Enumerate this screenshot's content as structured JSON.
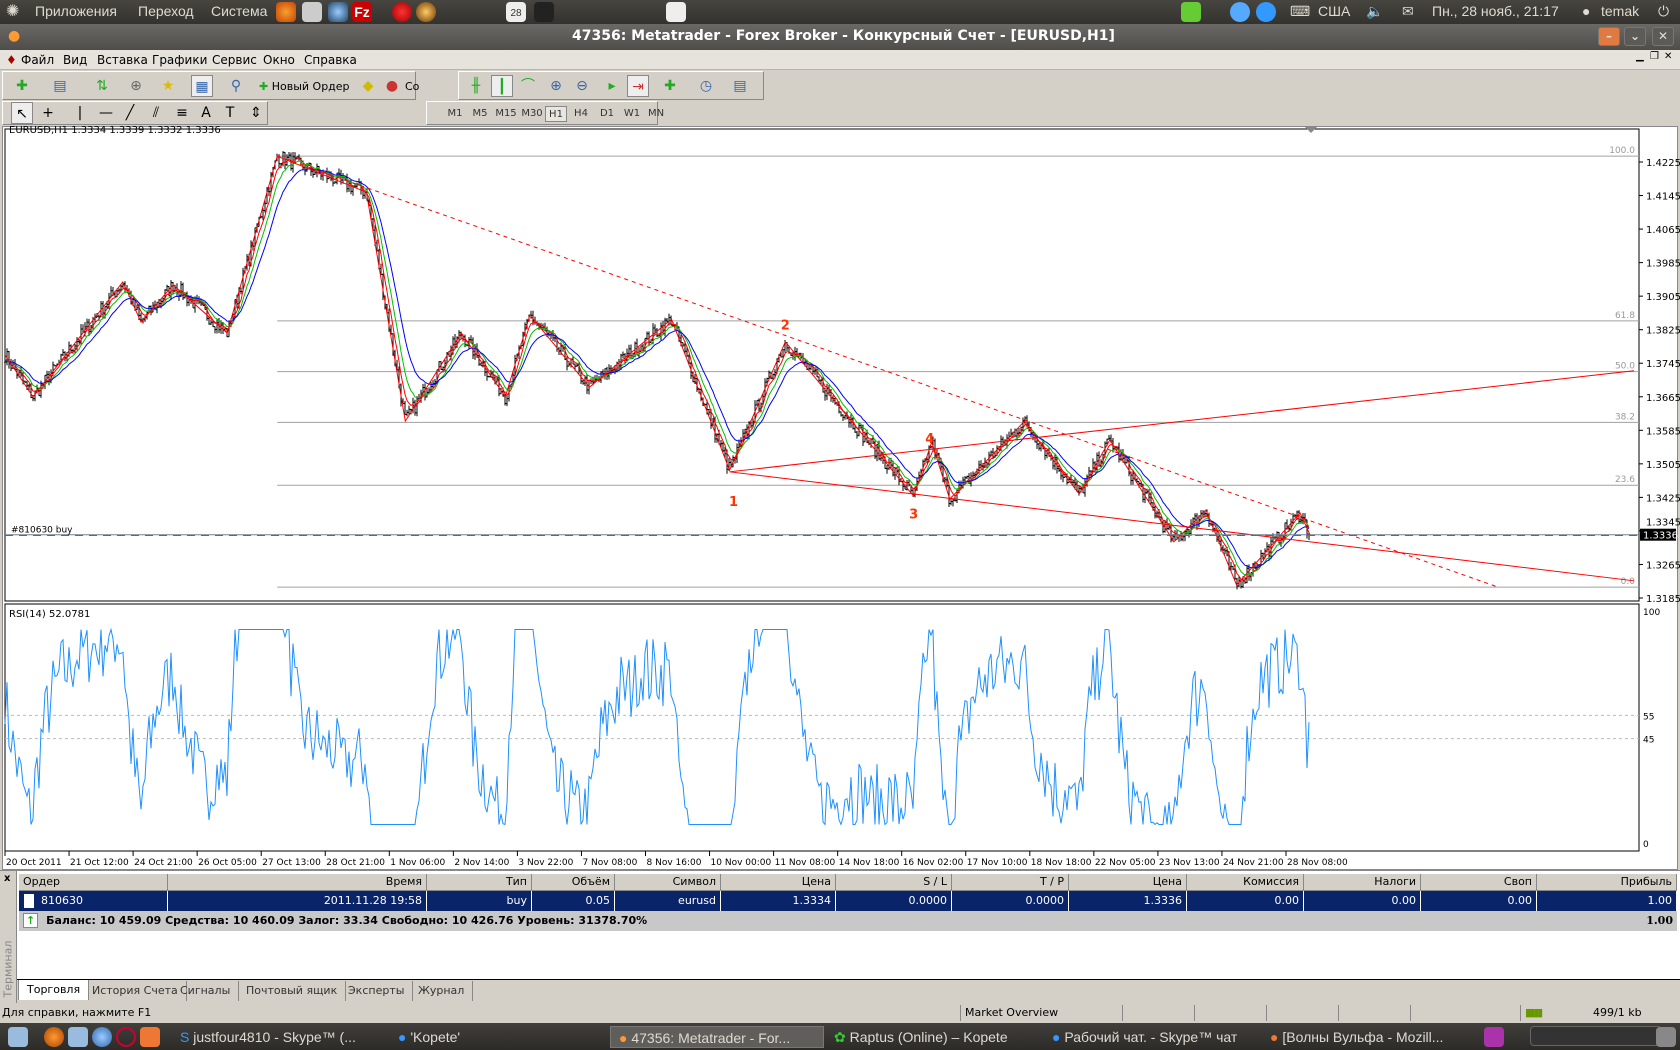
{
  "top_panel": {
    "menus": [
      "Приложения",
      "Переход",
      "Система"
    ],
    "calendar_day": "28",
    "keyboard": "США",
    "datetime": "Пн., 28 нояб., 21:17",
    "user": "temak"
  },
  "window": {
    "title": "47356: Metatrader - Forex Broker - Конкурсный Счет - [EURUSD,H1]"
  },
  "menu": [
    "Файл",
    "Вид",
    "Вставка",
    "Графики",
    "Сервис",
    "Окно",
    "Справка"
  ],
  "toolbar": {
    "new_order": "Новый Ордер",
    "truncated": "Co"
  },
  "timeframes": [
    "M1",
    "M5",
    "M15",
    "M30",
    "H1",
    "H4",
    "D1",
    "W1",
    "MN"
  ],
  "active_timeframe": "H1",
  "chart": {
    "info": "EURUSD,H1  1.3334 1.3339 1.3332 1.3336",
    "order_label": "#810630 buy",
    "bid": 1.3336,
    "bid_label": "1.3336",
    "order_price": 1.3334,
    "rsi_label": "RSI(14) 52.0781",
    "colors": {
      "ma_fast": "#ff0000",
      "ma_mid": "#00c000",
      "ma_slow": "#0000ff",
      "rsi": "#1e90ff",
      "trend": "#ff0000"
    }
  },
  "chart_data": {
    "type": "bar",
    "price_ticks": [
      "1.4225",
      "1.4145",
      "1.4065",
      "1.3985",
      "1.3905",
      "1.3825",
      "1.3745",
      "1.3665",
      "1.3585",
      "1.3505",
      "1.3425",
      "1.3345",
      "1.3265",
      "1.3185"
    ],
    "ylim": [
      1.3185,
      1.4225
    ],
    "time_ticks": [
      [
        "20 Oct 2011",
        "2011-10-20T04:00"
      ],
      [
        "21 Oct 12:00",
        "2011-10-21T12:00"
      ],
      [
        "24 Oct 21:00",
        "2011-10-24T21:00"
      ],
      [
        "26 Oct 05:00",
        "2011-10-26T05:00"
      ],
      [
        "27 Oct 13:00",
        "2011-10-27T13:00"
      ],
      [
        "28 Oct 21:00",
        "2011-10-28T21:00"
      ],
      [
        "1 Nov 06:00",
        "2011-11-01T06:00"
      ],
      [
        "2 Nov 14:00",
        "2011-11-02T14:00"
      ],
      [
        "3 Nov 22:00",
        "2011-11-03T22:00"
      ],
      [
        "7 Nov 08:00",
        "2011-11-07T08:00"
      ],
      [
        "8 Nov 16:00",
        "2011-11-08T16:00"
      ],
      [
        "10 Nov 00:00",
        "2011-11-10T00:00"
      ],
      [
        "11 Nov 08:00",
        "2011-11-11T08:00"
      ],
      [
        "14 Nov 18:00",
        "2011-11-14T18:00"
      ],
      [
        "16 Nov 02:00",
        "2011-11-16T02:00"
      ],
      [
        "17 Nov 10:00",
        "2011-11-17T10:00"
      ],
      [
        "18 Nov 18:00",
        "2011-11-18T18:00"
      ],
      [
        "22 Nov 05:00",
        "2011-11-22T05:00"
      ],
      [
        "23 Nov 13:00",
        "2011-11-23T13:00"
      ],
      [
        "24 Nov 21:00",
        "2011-11-24T21:00"
      ],
      [
        "28 Nov 08:00",
        "2011-11-28T08:00"
      ]
    ],
    "price_pivots": [
      [
        "2011-10-20T04:00",
        1.3765
      ],
      [
        "2011-10-20T18:00",
        1.3665
      ],
      [
        "2011-10-24T08:00",
        1.3939
      ],
      [
        "2011-10-25T01:00",
        1.3843
      ],
      [
        "2011-10-25T17:00",
        1.3932
      ],
      [
        "2011-10-26T20:00",
        1.3817
      ],
      [
        "2011-10-27T21:00",
        1.4239
      ],
      [
        "2011-10-31T01:00",
        1.4153
      ],
      [
        "2011-11-01T14:00",
        1.3607
      ],
      [
        "2011-11-02T18:00",
        1.3817
      ],
      [
        "2011-11-03T16:00",
        1.3665
      ],
      [
        "2011-11-04T14:00",
        1.386
      ],
      [
        "2011-11-07T12:00",
        1.3688
      ],
      [
        "2011-11-09T05:00",
        1.385
      ],
      [
        "2011-11-10T10:00",
        1.349
      ],
      [
        "2011-11-11T23:00",
        1.3796
      ],
      [
        "2011-11-16T08:00",
        1.3428
      ],
      [
        "2011-11-16T17:00",
        1.3557
      ],
      [
        "2011-11-17T02:00",
        1.3421
      ],
      [
        "2011-11-18T15:00",
        1.3605
      ],
      [
        "2011-11-21T10:00",
        1.3433
      ],
      [
        "2011-11-22T13:00",
        1.3562
      ],
      [
        "2011-11-23T21:00",
        1.3319
      ],
      [
        "2011-11-24T13:00",
        1.3395
      ],
      [
        "2011-11-25T16:00",
        1.3216
      ],
      [
        "2011-11-28T15:00",
        1.3388
      ],
      [
        "2011-11-28T20:00",
        1.3336
      ]
    ],
    "fib_levels": [
      {
        "label": "100.0",
        "price": 1.4239
      },
      {
        "label": "61.8",
        "price": 1.3846
      },
      {
        "label": "50.0",
        "price": 1.3725
      },
      {
        "label": "38.2",
        "price": 1.3604
      },
      {
        "label": "23.6",
        "price": 1.3454
      },
      {
        "label": "0.0",
        "price": 1.3211
      }
    ],
    "fib_start": "2011-10-27T21:00",
    "trendlines": [
      {
        "style": "dashed",
        "from": [
          "2011-10-27T21:00",
          1.4239
        ],
        "to": [
          "2011-12-02T18:00",
          1.3211
        ]
      },
      {
        "style": "solid",
        "from": [
          "2011-11-10T10:00",
          1.3486
        ],
        "to": [
          "2011-12-05T14:00",
          1.3727
        ]
      },
      {
        "style": "solid",
        "from": [
          "2011-11-10T10:00",
          1.3486
        ],
        "to": [
          "2011-12-05T14:00",
          1.3226
        ]
      }
    ],
    "wave_labels": [
      {
        "text": "1",
        "t": "2011-11-10T12:00",
        "p": 1.3405
      },
      {
        "text": "2",
        "t": "2011-11-11T23:00",
        "p": 1.3825
      },
      {
        "text": "3",
        "t": "2011-11-16T08:00",
        "p": 1.3375
      },
      {
        "text": "4",
        "t": "2011-11-16T16:00",
        "p": 1.3555
      }
    ],
    "rsi": {
      "period": 14,
      "last": 52.0781,
      "levels": [
        55,
        45
      ],
      "axis": [
        "100",
        "55",
        "45",
        "0"
      ]
    }
  },
  "terminal": {
    "side_label": "Терминал",
    "columns": [
      "Ордер",
      "Время",
      "Тип",
      "Объём",
      "Символ",
      "Цена",
      "S / L",
      "T / P",
      "Цена",
      "Комиссия",
      "Налоги",
      "Своп",
      "Прибыль"
    ],
    "rows": [
      [
        "810630",
        "2011.11.28 19:58",
        "buy",
        "0.05",
        "eurusd",
        "1.3334",
        "0.0000",
        "0.0000",
        "1.3336",
        "0.00",
        "0.00",
        "0.00",
        "1.00"
      ]
    ],
    "balance": "Баланс: 10 459.09  Средства: 10 460.09  Залог: 33.34  Свободно: 10 426.76  Уровень: 31378.70%",
    "total_profit": "1.00",
    "tabs": [
      "Торговля",
      "История Счета",
      "Сигналы",
      "Почтовый ящик",
      "Эксперты",
      "Журнал"
    ],
    "active_tab": "Торговля"
  },
  "status": {
    "help": "Для справки, нажмите F1",
    "profile": "Market Overview",
    "traffic": "499/1 kb"
  },
  "taskbar": [
    "justfour4810 - Skype™ (...",
    "'Kopete'",
    "47356: Metatrader - For...",
    "Raptus (Online) – Kopete",
    "Рабочий чат. - Skype™ чат",
    "[Волны Вульфа - Mozill..."
  ]
}
